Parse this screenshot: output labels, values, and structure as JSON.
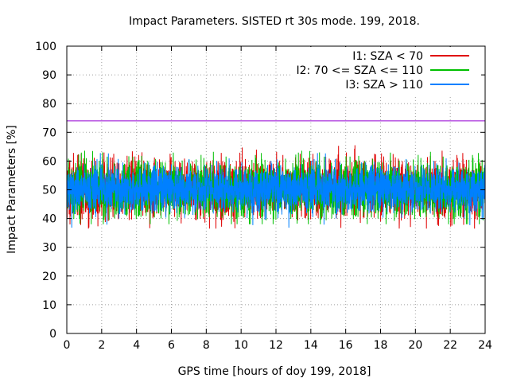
{
  "chart_data": {
    "type": "line",
    "title": "Impact Parameters. SISTED rt 30s mode. 199, 2018.",
    "xlabel": "GPS time [hours of doy 199, 2018]",
    "ylabel": "Impact Parameters [%]",
    "xlim": [
      0,
      24
    ],
    "ylim": [
      0,
      100
    ],
    "x_ticks": [
      0,
      2,
      4,
      6,
      8,
      10,
      12,
      14,
      16,
      18,
      20,
      22,
      24
    ],
    "y_ticks": [
      0,
      10,
      20,
      30,
      40,
      50,
      60,
      70,
      80,
      90,
      100
    ],
    "grid": true,
    "legend_position": "top-right",
    "threshold": {
      "value": 74,
      "color": "#9400d3"
    },
    "series": [
      {
        "name": "I1: SZA < 70",
        "color": "#e00000",
        "mean": 50.5,
        "spread": 5.5,
        "min": 36.5,
        "max": 65.5
      },
      {
        "name": "I2: 70 <= SZA <= 110",
        "color": "#00c000",
        "mean": 50.5,
        "spread": 5.5,
        "min": 38.0,
        "max": 66.0
      },
      {
        "name": "I3: SZA > 110",
        "color": "#0080ff",
        "mean": 50.5,
        "spread": 4.5,
        "min": 36.0,
        "max": 65.0
      }
    ]
  }
}
